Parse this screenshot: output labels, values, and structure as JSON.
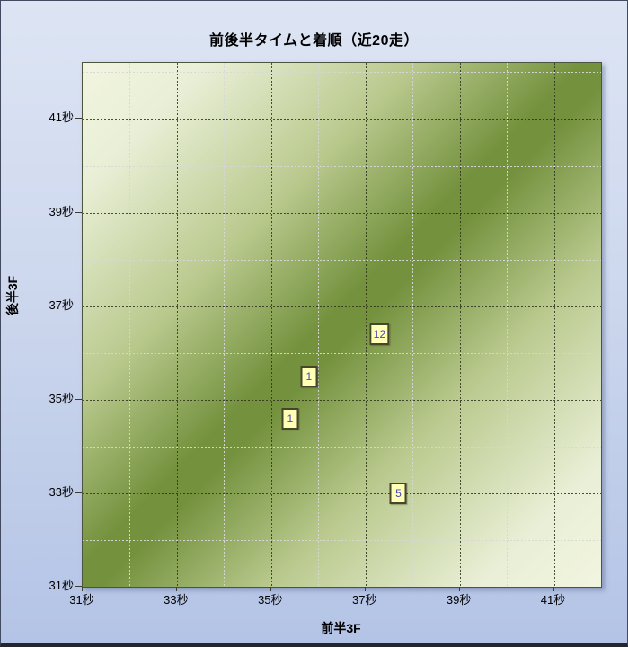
{
  "chart": {
    "title": "前後半タイムと着順（近20走）",
    "xlabel": "前半3F",
    "ylabel": "後半3F"
  },
  "chart_data": {
    "type": "scatter",
    "title": "前後半タイムと着順（近20走）",
    "xlabel": "前半3F",
    "ylabel": "後半3F",
    "xlim": [
      31,
      42
    ],
    "ylim": [
      31,
      42.2
    ],
    "tick_suffix": "秒",
    "x_major_ticks": [
      31,
      33,
      35,
      37,
      39,
      41
    ],
    "y_major_ticks": [
      31,
      33,
      35,
      37,
      39,
      41
    ],
    "x_minor_ticks": [
      32,
      34,
      36,
      38,
      40
    ],
    "y_minor_ticks": [
      32,
      34,
      36,
      38,
      40,
      42
    ],
    "grid": true,
    "legend": "none",
    "points": [
      {
        "x": 37.3,
        "y": 36.4,
        "label": "12"
      },
      {
        "x": 35.8,
        "y": 35.5,
        "label": "1"
      },
      {
        "x": 35.4,
        "y": 34.6,
        "label": "1"
      },
      {
        "x": 37.7,
        "y": 33.0,
        "label": "5"
      }
    ]
  },
  "colors": {
    "page_bg_top": "#dde5f4",
    "page_bg_bottom": "#b4c4e6",
    "plot_pale": "#f2f5e0",
    "plot_dark": "#74923e",
    "grid_major": "#2d321c",
    "grid_minor": "#d7d7d7",
    "marker_bg": "#ffffb6",
    "marker_border": "#45452c",
    "marker_text": "#4545bf",
    "text": "#000000"
  }
}
